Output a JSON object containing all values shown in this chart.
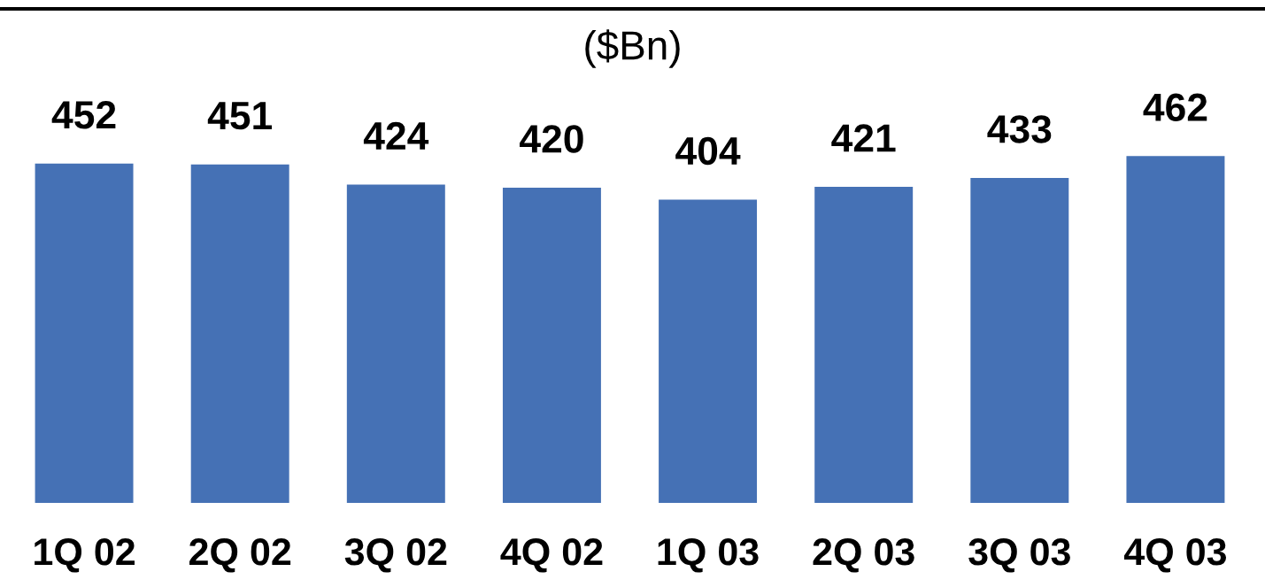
{
  "chart_data": {
    "type": "bar",
    "subtitle": "($Bn)",
    "categories": [
      "1Q 02",
      "2Q 02",
      "3Q 02",
      "4Q 02",
      "1Q 03",
      "2Q 03",
      "3Q 03",
      "4Q 03"
    ],
    "values": [
      452,
      451,
      424,
      420,
      404,
      421,
      433,
      462
    ],
    "color": "#4571b5",
    "data_labels": true,
    "grid": false,
    "legend": false
  }
}
